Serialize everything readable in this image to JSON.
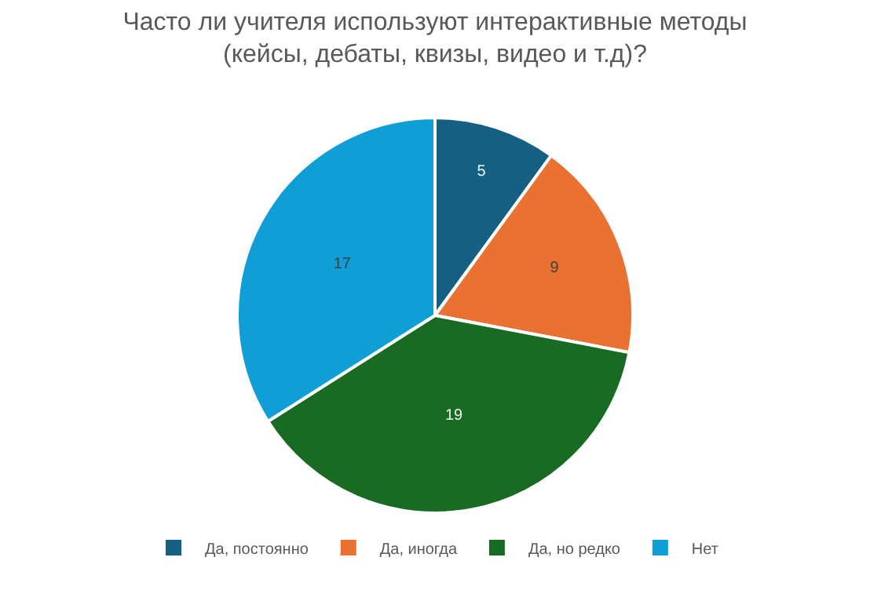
{
  "chart_data": {
    "type": "pie",
    "title": "Часто ли учителя используют интерактивные методы (кейсы, дебаты, квизы, видео и т.д)?",
    "categories": [
      "Да, постоянно",
      "Да, иногда",
      "Да, но редко",
      "Нет"
    ],
    "values": [
      5,
      9,
      19,
      17
    ],
    "colors": [
      "#156082",
      "#e97132",
      "#196b24",
      "#0f9ed5"
    ],
    "data_labels": true,
    "legend": "bottom"
  }
}
